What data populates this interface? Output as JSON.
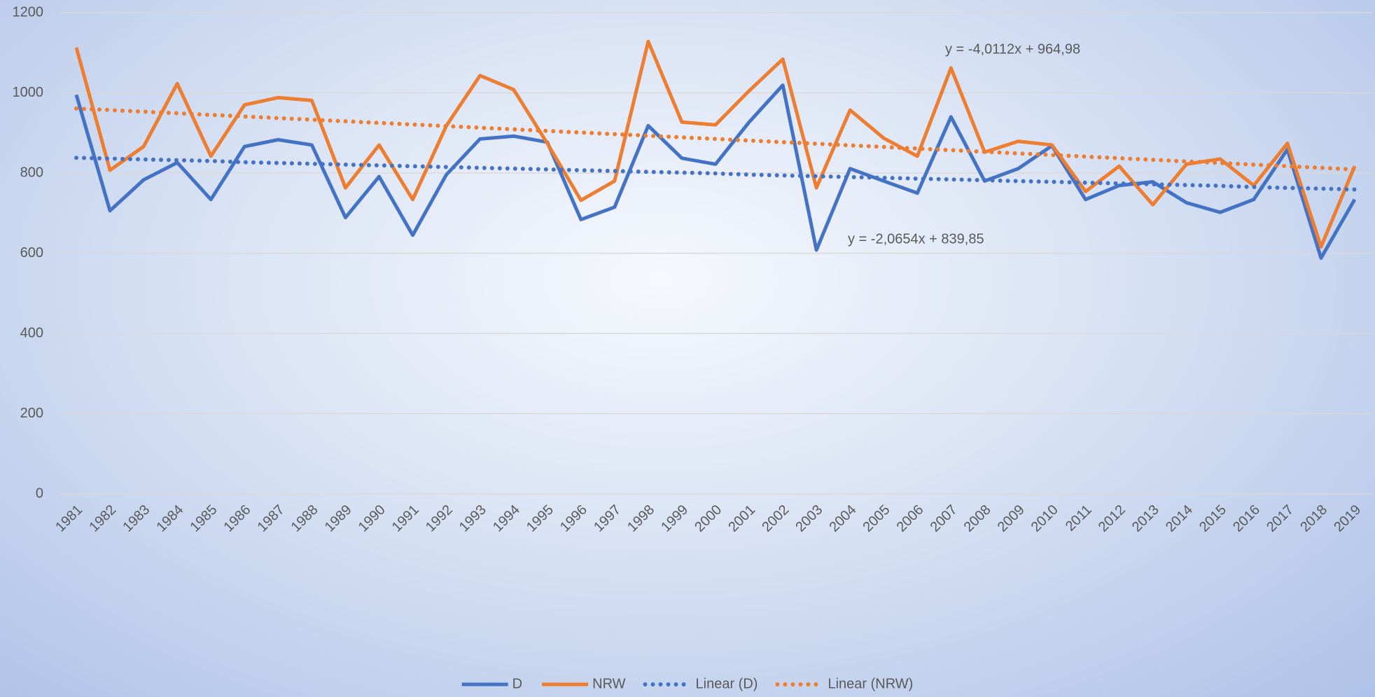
{
  "chart_data": {
    "type": "line",
    "categories": [
      "1981",
      "1982",
      "1983",
      "1984",
      "1985",
      "1986",
      "1987",
      "1988",
      "1989",
      "1990",
      "1991",
      "1992",
      "1993",
      "1994",
      "1995",
      "1996",
      "1997",
      "1998",
      "1999",
      "2000",
      "2001",
      "2002",
      "2003",
      "2004",
      "2005",
      "2006",
      "2007",
      "2008",
      "2009",
      "2010",
      "2011",
      "2012",
      "2013",
      "2014",
      "2015",
      "2016",
      "2017",
      "2018",
      "2019"
    ],
    "series": [
      {
        "name": "D",
        "color": "#4472c4",
        "style": "solid",
        "values": [
          995,
          706,
          783,
          826,
          734,
          866,
          883,
          870,
          689,
          791,
          645,
          796,
          885,
          892,
          877,
          684,
          715,
          918,
          837,
          822,
          927,
          1019,
          608,
          811,
          780,
          750,
          940,
          780,
          811,
          868,
          734,
          769,
          778,
          726,
          702,
          734,
          859,
          588,
          734
        ]
      },
      {
        "name": "NRW",
        "color": "#ed7d31",
        "style": "solid",
        "values": [
          1113,
          807,
          866,
          1023,
          842,
          970,
          988,
          981,
          763,
          870,
          734,
          918,
          1043,
          1008,
          874,
          732,
          780,
          1128,
          927,
          920,
          1005,
          1084,
          763,
          957,
          887,
          842,
          1062,
          852,
          879,
          870,
          754,
          817,
          721,
          822,
          835,
          769,
          874,
          616,
          817
        ]
      },
      {
        "name": "Linear (D)",
        "color": "#4472c4",
        "style": "dotted",
        "values": [
          838,
          836,
          834,
          832,
          830,
          827,
          825,
          823,
          821,
          819,
          817,
          815,
          813,
          811,
          809,
          807,
          805,
          803,
          801,
          799,
          796,
          794,
          792,
          790,
          788,
          786,
          784,
          782,
          780,
          778,
          776,
          774,
          772,
          770,
          768,
          765,
          763,
          761,
          759
        ]
      },
      {
        "name": "Linear (NRW)",
        "color": "#ed7d31",
        "style": "dotted",
        "values": [
          961,
          957,
          953,
          949,
          945,
          941,
          937,
          933,
          929,
          925,
          921,
          917,
          913,
          909,
          905,
          901,
          897,
          893,
          889,
          885,
          881,
          877,
          873,
          869,
          865,
          861,
          857,
          853,
          849,
          845,
          841,
          837,
          833,
          829,
          825,
          821,
          817,
          813,
          809
        ]
      }
    ],
    "annotations": [
      "y = -4,0112x + 964,98",
      "y = -2,0654x + 839,85"
    ],
    "ylim": [
      0,
      1200
    ],
    "yticks": [
      0,
      200,
      400,
      600,
      800,
      1000,
      1200
    ],
    "grid": true,
    "legend": "bottom"
  }
}
